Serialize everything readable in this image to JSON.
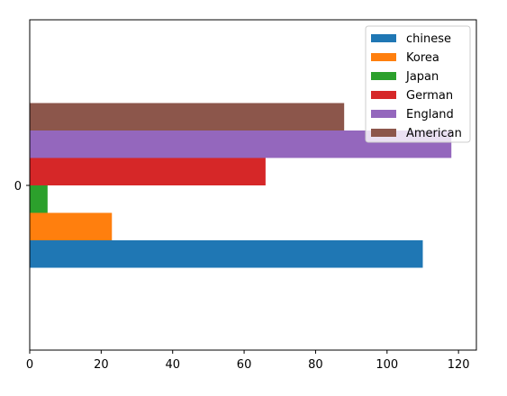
{
  "chart_data": {
    "type": "bar",
    "orientation": "horizontal",
    "categories": [
      "0"
    ],
    "series": [
      {
        "name": "chinese",
        "values": [
          110
        ],
        "color": "#1f77b4"
      },
      {
        "name": "Korea",
        "values": [
          23
        ],
        "color": "#ff7f0e"
      },
      {
        "name": "Japan",
        "values": [
          5
        ],
        "color": "#2ca02c"
      },
      {
        "name": "German",
        "values": [
          66
        ],
        "color": "#d62728"
      },
      {
        "name": "England",
        "values": [
          118
        ],
        "color": "#9467bd"
      },
      {
        "name": "American",
        "values": [
          88
        ],
        "color": "#8c564b"
      }
    ],
    "xlim": [
      0,
      125
    ],
    "xticks": [
      0,
      20,
      40,
      60,
      80,
      100,
      120
    ],
    "xtick_labels": [
      "0",
      "20",
      "40",
      "60",
      "80",
      "100",
      "120"
    ],
    "ytick_labels": [
      "0"
    ],
    "legend_position": "top-right",
    "grid": false
  }
}
